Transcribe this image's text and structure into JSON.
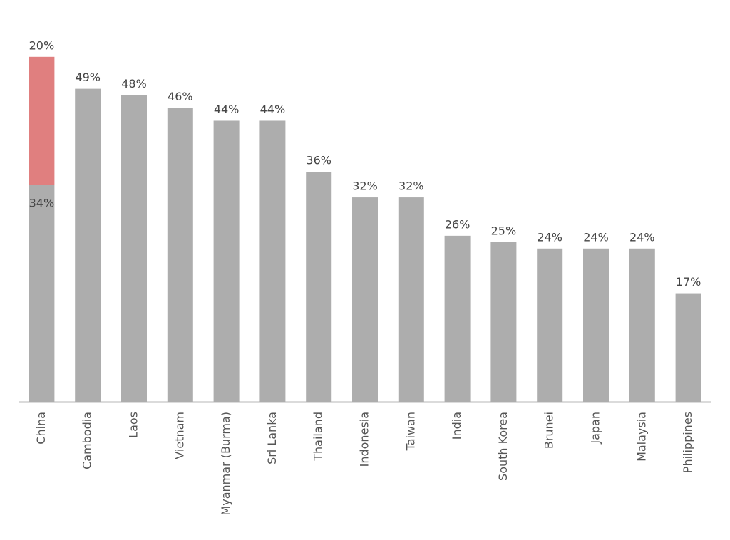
{
  "chart_data": {
    "type": "stacked_bar",
    "categories": [
      "China",
      "Cambodia",
      "Laos",
      "Vietnam",
      "Myanmar (Burma)",
      "Sri Lanka",
      "Thailand",
      "Indonesia",
      "Taiwan",
      "India",
      "South Korea",
      "Brunei",
      "Japan",
      "Malaysia",
      "Philippines"
    ],
    "series": [
      {
        "color": "#adadad",
        "values": [
          34,
          49,
          48,
          46,
          44,
          44,
          36,
          32,
          32,
          26,
          25,
          24,
          24,
          24,
          17
        ],
        "value_labels": [
          "34%",
          "49%",
          "48%",
          "46%",
          "44%",
          "44%",
          "36%",
          "32%",
          "32%",
          "26%",
          "25%",
          "24%",
          "24%",
          "24%",
          "17%"
        ]
      },
      {
        "color": "#e07f7f",
        "values": [
          20,
          null,
          null,
          null,
          null,
          null,
          null,
          null,
          null,
          null,
          null,
          null,
          null,
          null,
          null
        ],
        "value_labels": [
          "20%",
          null,
          null,
          null,
          null,
          null,
          null,
          null,
          null,
          null,
          null,
          null,
          null,
          null,
          null
        ]
      }
    ],
    "ylim": [
      0,
      60
    ]
  }
}
